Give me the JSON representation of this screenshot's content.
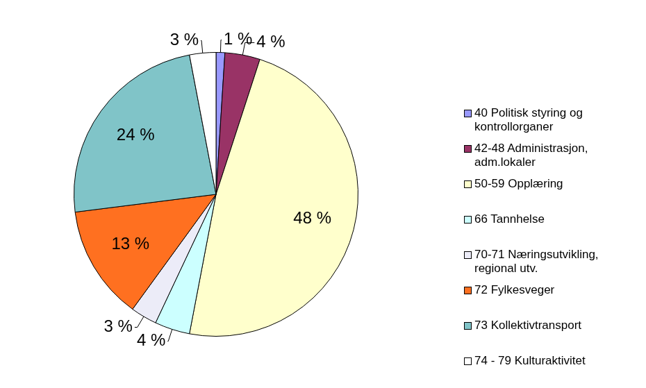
{
  "chart_data": {
    "type": "pie",
    "categories": [
      "40 Politisk styring og kontrollorganer",
      "42-48 Administrasjon, adm.lokaler",
      "50-59 Opplæring",
      "66 Tannhelse",
      "70-71 Næringsutvikling, regional utv.",
      "72 Fylkesveger",
      "73 Kollektivtransport",
      "74 - 79 Kulturaktivitet"
    ],
    "values": [
      1,
      4,
      48,
      4,
      3,
      13,
      24,
      3
    ],
    "value_labels": [
      "1 %",
      "4 %",
      "48 %",
      "4 %",
      "3 %",
      "13 %",
      "24 %",
      "3 %"
    ],
    "colors": [
      "#9999ff",
      "#993366",
      "#ffffcc",
      "#ccffff",
      "#ececf8",
      "#ff7020",
      "#80c4c8",
      "#ffffff"
    ],
    "data_labels": true,
    "legend": "right"
  }
}
